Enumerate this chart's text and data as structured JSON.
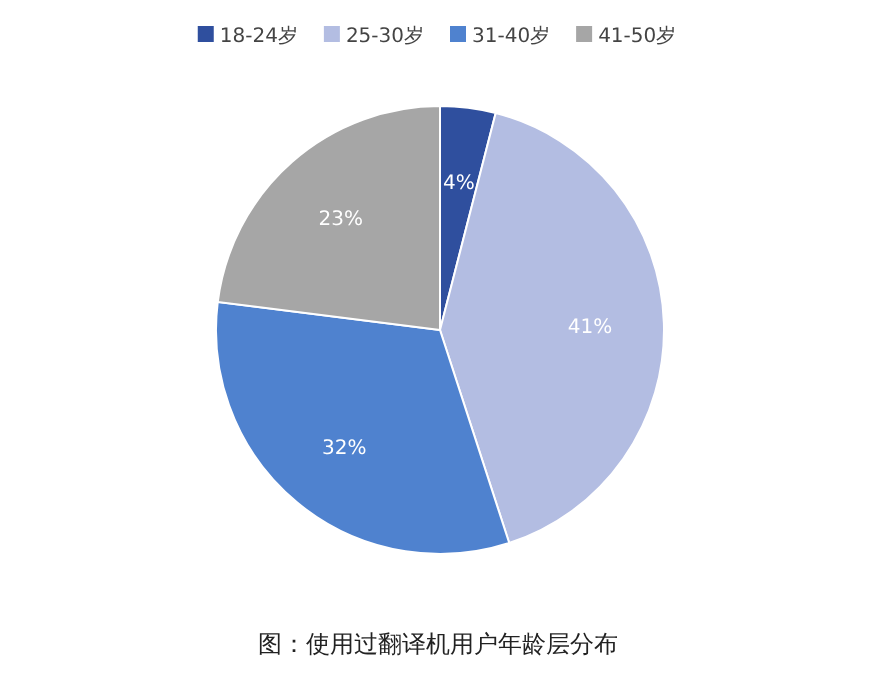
{
  "chart_data": {
    "type": "pie",
    "categories": [
      "18-24岁",
      "25-30岁",
      "31-40岁",
      "41-50岁"
    ],
    "values": [
      4,
      41,
      32,
      23
    ],
    "colors": [
      "#2f4f9e",
      "#b3bde2",
      "#4f82cf",
      "#a6a6a6"
    ],
    "value_labels": [
      "4%",
      "41%",
      "32%",
      "23%"
    ],
    "legend": "top",
    "annotations": [
      "图：使用过翻译机用户年龄层分布"
    ]
  }
}
